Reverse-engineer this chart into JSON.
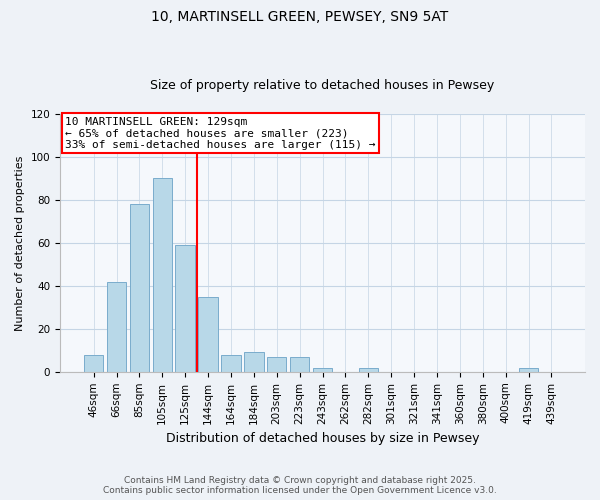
{
  "title": "10, MARTINSELL GREEN, PEWSEY, SN9 5AT",
  "subtitle": "Size of property relative to detached houses in Pewsey",
  "xlabel": "Distribution of detached houses by size in Pewsey",
  "ylabel": "Number of detached properties",
  "bar_labels": [
    "46sqm",
    "66sqm",
    "85sqm",
    "105sqm",
    "125sqm",
    "144sqm",
    "164sqm",
    "184sqm",
    "203sqm",
    "223sqm",
    "243sqm",
    "262sqm",
    "282sqm",
    "301sqm",
    "321sqm",
    "341sqm",
    "360sqm",
    "380sqm",
    "400sqm",
    "419sqm",
    "439sqm"
  ],
  "bar_values": [
    8,
    42,
    78,
    90,
    59,
    35,
    8,
    9,
    7,
    7,
    2,
    0,
    2,
    0,
    0,
    0,
    0,
    0,
    0,
    2,
    0
  ],
  "bar_color": "#b8d8e8",
  "bar_edge_color": "#7aaccc",
  "vline_x": 4.5,
  "vline_color": "red",
  "ylim": [
    0,
    120
  ],
  "yticks": [
    0,
    20,
    40,
    60,
    80,
    100,
    120
  ],
  "annotation_title": "10 MARTINSELL GREEN: 129sqm",
  "annotation_line1": "← 65% of detached houses are smaller (223)",
  "annotation_line2": "33% of semi-detached houses are larger (115) →",
  "footnote1": "Contains HM Land Registry data © Crown copyright and database right 2025.",
  "footnote2": "Contains public sector information licensed under the Open Government Licence v3.0.",
  "background_color": "#eef2f7",
  "plot_bg_color": "#f5f8fc",
  "grid_color": "#c5d5e5",
  "title_fontsize": 10,
  "subtitle_fontsize": 9,
  "annotation_fontsize": 8,
  "ylabel_fontsize": 8,
  "xlabel_fontsize": 9,
  "tick_fontsize": 7.5,
  "footnote_fontsize": 6.5
}
